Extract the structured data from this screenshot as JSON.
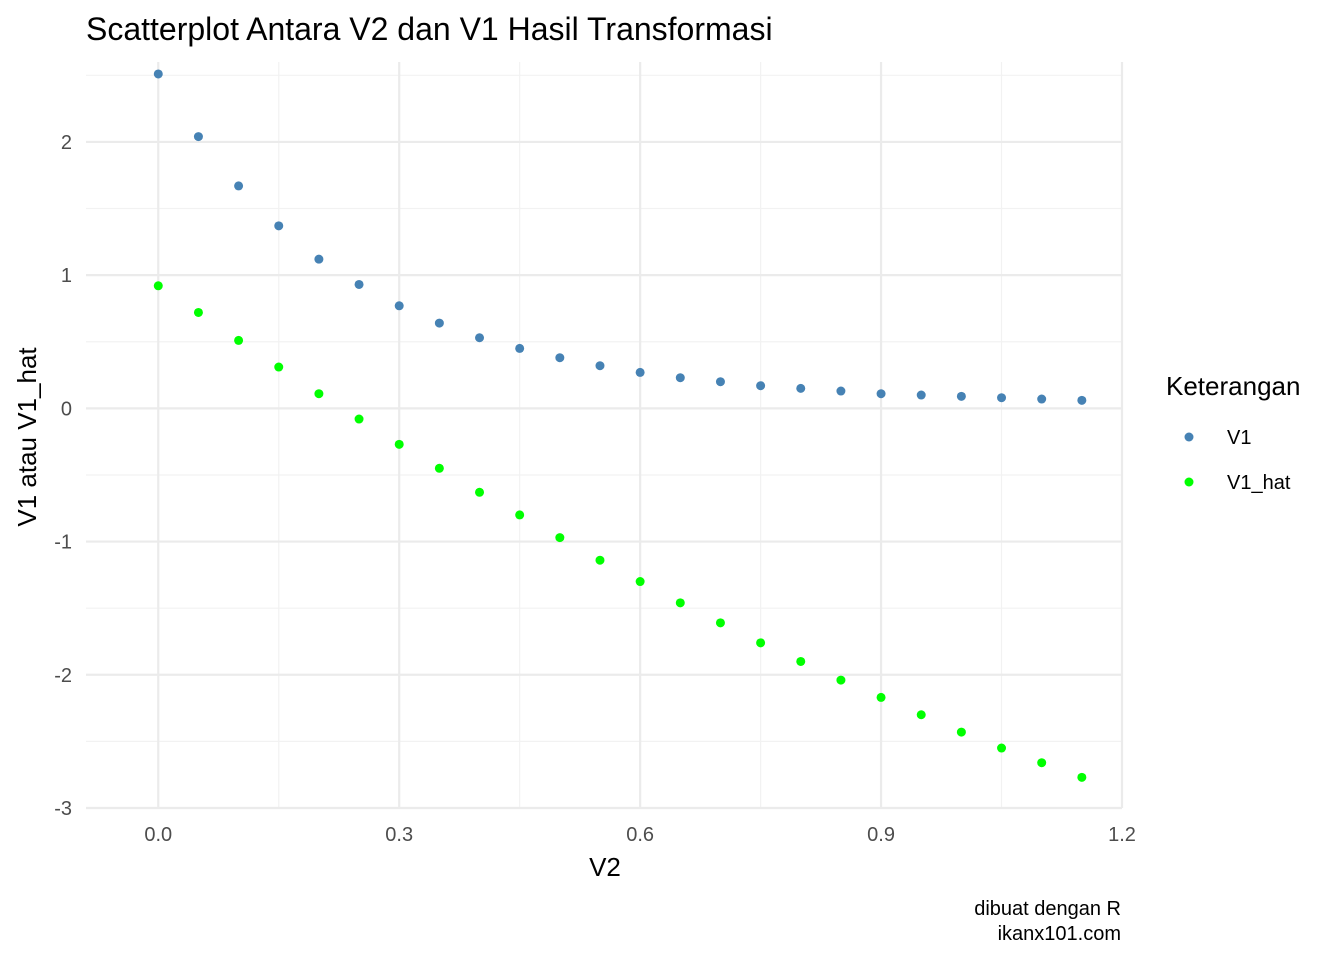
{
  "chart_data": {
    "type": "scatter",
    "title": "Scatterplot Antara V2 dan V1 Hasil Transformasi",
    "xlabel": "V2",
    "ylabel": "V1 atau V1_hat",
    "xlim": [
      -0.09,
      1.2
    ],
    "ylim": [
      -3,
      2.6
    ],
    "x_ticks": [
      0.0,
      0.3,
      0.6,
      0.9,
      1.2
    ],
    "x_tick_labels": [
      "0.0",
      "0.3",
      "0.6",
      "0.9",
      "1.2"
    ],
    "y_ticks": [
      -3,
      -2,
      -1,
      0,
      1,
      2
    ],
    "y_tick_labels": [
      "-3",
      "-2",
      "-1",
      "0",
      "1",
      "2"
    ],
    "grid": true,
    "legend": {
      "title": "Keterangan",
      "position": "right"
    },
    "x": [
      0.0,
      0.05,
      0.1,
      0.15,
      0.2,
      0.25,
      0.3,
      0.35,
      0.4,
      0.45,
      0.5,
      0.55,
      0.6,
      0.65,
      0.7,
      0.75,
      0.8,
      0.85,
      0.9,
      0.95,
      1.0,
      1.05,
      1.1,
      1.15
    ],
    "series": [
      {
        "name": "V1",
        "color": "#4682B4",
        "values": [
          2.51,
          2.04,
          1.67,
          1.37,
          1.12,
          0.93,
          0.77,
          0.64,
          0.53,
          0.45,
          0.38,
          0.32,
          0.27,
          0.23,
          0.2,
          0.17,
          0.15,
          0.13,
          0.11,
          0.1,
          0.09,
          0.08,
          0.07,
          0.06
        ]
      },
      {
        "name": "V1_hat",
        "color": "#00FF00",
        "values": [
          0.92,
          0.72,
          0.51,
          0.31,
          0.11,
          -0.08,
          -0.27,
          -0.45,
          -0.63,
          -0.8,
          -0.97,
          -1.14,
          -1.3,
          -1.46,
          -1.61,
          -1.76,
          -1.9,
          -2.04,
          -2.17,
          -2.3,
          -2.43,
          -2.55,
          -2.66,
          -2.77
        ]
      }
    ],
    "caption": [
      "dibuat dengan R",
      "ikanx101.com"
    ]
  }
}
